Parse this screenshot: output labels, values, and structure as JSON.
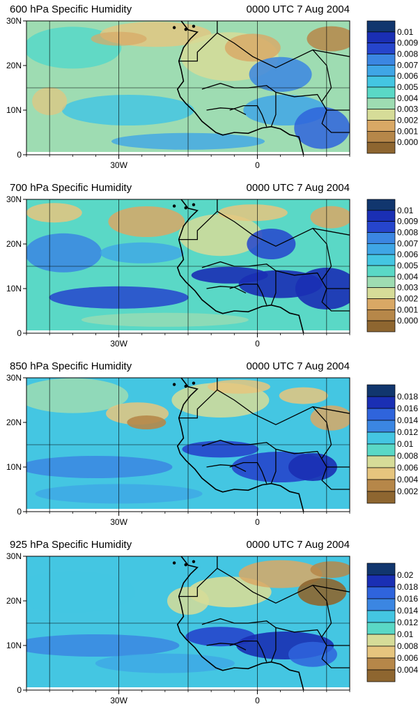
{
  "panels": [
    {
      "level": "600",
      "title": "600 hPa Specific Humidity",
      "time_label": "0000 UTC 7 Aug 2004",
      "colorbar_labels": [
        "0.01",
        "0.0091",
        "0.0081",
        "0.0071",
        "0.0061",
        "0.0051",
        "0.0041",
        "0.0031",
        "0.0021",
        "0.0011",
        "0.0001"
      ],
      "colorbar_n_labels": 11
    },
    {
      "level": "700",
      "title": "700 hPa Specific Humidity",
      "time_label": "0000 UTC 7 Aug 2004",
      "colorbar_labels": [
        "0.01",
        "0.0091",
        "0.0081",
        "0.0071",
        "0.0061",
        "0.0051",
        "0.0041",
        "0.0031",
        "0.0021",
        "0.0011",
        "0.0001"
      ],
      "colorbar_n_labels": 11
    },
    {
      "level": "850",
      "title": "850 hPa Specific Humidity",
      "time_label": "0000 UTC 7 Aug 2004",
      "colorbar_labels": [
        "0.018",
        "0.016",
        "0.014",
        "0.012",
        "0.01",
        "0.008",
        "0.006",
        "0.004",
        "0.002"
      ],
      "colorbar_n_labels": 9
    },
    {
      "level": "925",
      "title": "925 hPa Specific Humidity",
      "time_label": "0000 UTC 7 Aug 2004",
      "colorbar_labels": [
        "0.02",
        "0.018",
        "0.016",
        "0.014",
        "0.012",
        "0.01",
        "0.008",
        "0.006",
        "0.004"
      ],
      "colorbar_n_labels": 9
    }
  ],
  "axes": {
    "lat_ticks": [
      {
        "value": 30,
        "label": "30N"
      },
      {
        "value": 20,
        "label": "20N"
      },
      {
        "value": 10,
        "label": "10N"
      },
      {
        "value": 0,
        "label": "0"
      }
    ],
    "lon_ticks": [
      {
        "value": -30,
        "label": "30W"
      },
      {
        "value": 0,
        "label": "0"
      }
    ],
    "lon_range": [
      -50,
      20
    ],
    "lat_range": [
      0,
      30
    ],
    "grid": true
  },
  "colors": {
    "scale": [
      "#11366e",
      "#1a2fb4",
      "#2645cc",
      "#2f64dc",
      "#3b86e2",
      "#3fa6e6",
      "#44c6e2",
      "#5ad8c6",
      "#9edcb2",
      "#d6dc98",
      "#e6c57e",
      "#d9a865",
      "#b68749",
      "#8e6630"
    ],
    "coast": "#000000",
    "grid": "#000000"
  }
}
